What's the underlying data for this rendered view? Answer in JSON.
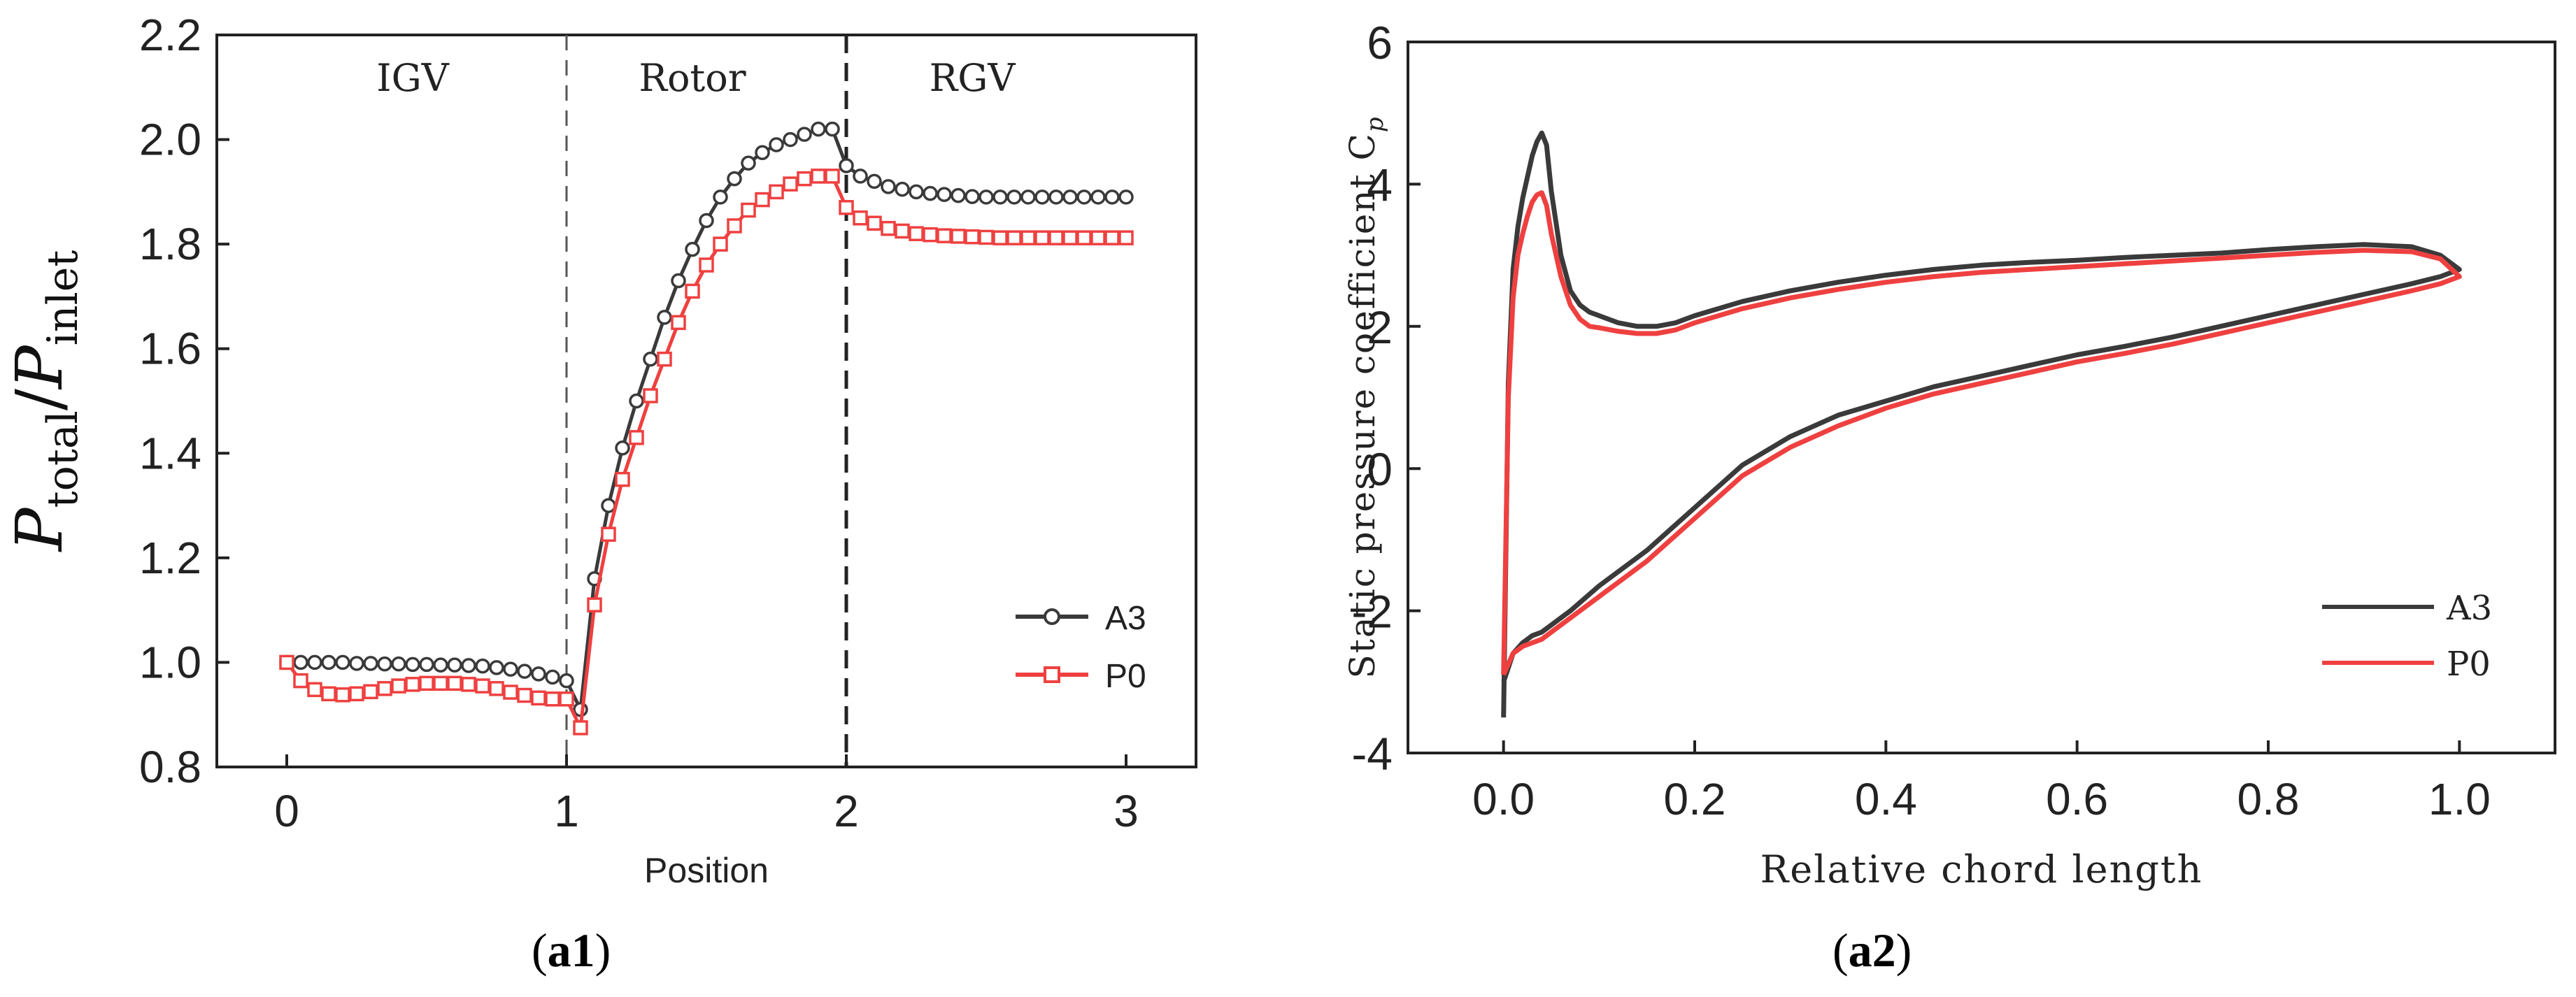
{
  "chart_data": [
    {
      "type": "line",
      "panel": "a1",
      "xlabel": "Position",
      "ylabel_main": "P",
      "ylabel_sub1": "total",
      "ylabel_slash": "/",
      "ylabel_main2": "P",
      "ylabel_sub2": "inlet",
      "xlim": [
        -0.25,
        3.25
      ],
      "ylim": [
        0.8,
        2.2
      ],
      "xticks": [
        0,
        1,
        2,
        3
      ],
      "xtick_labels": [
        "0",
        "1",
        "2",
        "3"
      ],
      "yticks": [
        0.8,
        1.0,
        1.2,
        1.4,
        1.6,
        1.8,
        2.0,
        2.2
      ],
      "ytick_labels": [
        "0.8",
        "1.0",
        "1.2",
        "1.4",
        "1.6",
        "1.8",
        "2.0",
        "2.2"
      ],
      "region_labels": [
        "IGV",
        "Rotor",
        "RGV"
      ],
      "dividers": [
        1,
        2
      ],
      "legend_position": "lower-right",
      "series": [
        {
          "name": "A3",
          "color": "#3a3a3a",
          "marker": "circle",
          "x": [
            0,
            0.05,
            0.1,
            0.15,
            0.2,
            0.25,
            0.3,
            0.35,
            0.4,
            0.45,
            0.5,
            0.55,
            0.6,
            0.65,
            0.7,
            0.75,
            0.8,
            0.85,
            0.9,
            0.95,
            1.0,
            1.05,
            1.1,
            1.15,
            1.2,
            1.25,
            1.3,
            1.35,
            1.4,
            1.45,
            1.5,
            1.55,
            1.6,
            1.65,
            1.7,
            1.75,
            1.8,
            1.85,
            1.9,
            1.95,
            2.0,
            2.05,
            2.1,
            2.15,
            2.2,
            2.25,
            2.3,
            2.35,
            2.4,
            2.45,
            2.5,
            2.55,
            2.6,
            2.65,
            2.7,
            2.75,
            2.8,
            2.85,
            2.9,
            2.95,
            3.0
          ],
          "y": [
            1.0,
            1.0,
            1.0,
            1.0,
            1.0,
            0.998,
            0.998,
            0.997,
            0.997,
            0.996,
            0.996,
            0.995,
            0.995,
            0.994,
            0.993,
            0.99,
            0.987,
            0.983,
            0.978,
            0.972,
            0.965,
            0.91,
            1.16,
            1.3,
            1.41,
            1.5,
            1.58,
            1.66,
            1.73,
            1.79,
            1.845,
            1.89,
            1.925,
            1.955,
            1.975,
            1.99,
            2.0,
            2.01,
            2.02,
            2.02,
            1.95,
            1.93,
            1.92,
            1.91,
            1.905,
            1.9,
            1.897,
            1.895,
            1.893,
            1.891,
            1.89,
            1.89,
            1.89,
            1.89,
            1.89,
            1.89,
            1.89,
            1.89,
            1.89,
            1.89,
            1.89
          ]
        },
        {
          "name": "P0",
          "color": "#ef4040",
          "marker": "square",
          "x": [
            0,
            0.05,
            0.1,
            0.15,
            0.2,
            0.25,
            0.3,
            0.35,
            0.4,
            0.45,
            0.5,
            0.55,
            0.6,
            0.65,
            0.7,
            0.75,
            0.8,
            0.85,
            0.9,
            0.95,
            1.0,
            1.05,
            1.1,
            1.15,
            1.2,
            1.25,
            1.3,
            1.35,
            1.4,
            1.45,
            1.5,
            1.55,
            1.6,
            1.65,
            1.7,
            1.75,
            1.8,
            1.85,
            1.9,
            1.95,
            2.0,
            2.05,
            2.1,
            2.15,
            2.2,
            2.25,
            2.3,
            2.35,
            2.4,
            2.45,
            2.5,
            2.55,
            2.6,
            2.65,
            2.7,
            2.75,
            2.8,
            2.85,
            2.9,
            2.95,
            3.0
          ],
          "y": [
            1.0,
            0.965,
            0.948,
            0.94,
            0.938,
            0.94,
            0.944,
            0.95,
            0.955,
            0.958,
            0.96,
            0.96,
            0.96,
            0.958,
            0.955,
            0.95,
            0.943,
            0.937,
            0.932,
            0.93,
            0.93,
            0.875,
            1.11,
            1.245,
            1.35,
            1.43,
            1.51,
            1.58,
            1.65,
            1.71,
            1.76,
            1.8,
            1.835,
            1.865,
            1.885,
            1.9,
            1.915,
            1.925,
            1.93,
            1.93,
            1.87,
            1.85,
            1.84,
            1.83,
            1.825,
            1.82,
            1.818,
            1.816,
            1.815,
            1.814,
            1.813,
            1.812,
            1.812,
            1.812,
            1.812,
            1.812,
            1.812,
            1.812,
            1.812,
            1.812,
            1.812
          ]
        }
      ]
    },
    {
      "type": "line",
      "panel": "a2",
      "xlabel": "Relative chord length",
      "ylabel_main": "Static pressure coefficient C",
      "ylabel_sub": "p",
      "xlim": [
        -0.1,
        1.1
      ],
      "ylim": [
        -4,
        6
      ],
      "xticks": [
        0.0,
        0.2,
        0.4,
        0.6,
        0.8,
        1.0
      ],
      "xtick_labels": [
        "0.0",
        "0.2",
        "0.4",
        "0.6",
        "0.8",
        "1.0"
      ],
      "yticks": [
        -4,
        -2,
        0,
        2,
        4,
        6
      ],
      "ytick_labels": [
        "-4",
        "-2",
        "0",
        "2",
        "4",
        "6"
      ],
      "legend_position": "lower-right",
      "series": [
        {
          "name": "A3",
          "color": "#3a3a3a",
          "x": [
            0.0,
            0.005,
            0.01,
            0.015,
            0.02,
            0.025,
            0.03,
            0.035,
            0.04,
            0.045,
            0.05,
            0.06,
            0.07,
            0.08,
            0.09,
            0.1,
            0.12,
            0.14,
            0.16,
            0.18,
            0.2,
            0.25,
            0.3,
            0.35,
            0.4,
            0.45,
            0.5,
            0.55,
            0.6,
            0.65,
            0.7,
            0.75,
            0.8,
            0.85,
            0.9,
            0.95,
            0.98,
            1.0,
            0.98,
            0.95,
            0.9,
            0.85,
            0.8,
            0.75,
            0.7,
            0.65,
            0.6,
            0.55,
            0.5,
            0.45,
            0.4,
            0.35,
            0.3,
            0.25,
            0.2,
            0.15,
            0.1,
            0.07,
            0.05,
            0.04,
            0.03,
            0.02,
            0.01,
            0.005,
            0.0
          ],
          "y": [
            -3.5,
            1.2,
            2.8,
            3.4,
            3.8,
            4.1,
            4.4,
            4.6,
            4.72,
            4.55,
            3.9,
            3.0,
            2.5,
            2.3,
            2.2,
            2.15,
            2.05,
            2.0,
            2.0,
            2.05,
            2.15,
            2.35,
            2.5,
            2.62,
            2.72,
            2.8,
            2.86,
            2.9,
            2.93,
            2.97,
            3.0,
            3.03,
            3.08,
            3.12,
            3.15,
            3.12,
            3.0,
            2.8,
            2.7,
            2.6,
            2.45,
            2.3,
            2.15,
            2.0,
            1.85,
            1.72,
            1.6,
            1.45,
            1.3,
            1.15,
            0.95,
            0.75,
            0.45,
            0.05,
            -0.55,
            -1.15,
            -1.65,
            -2.0,
            -2.2,
            -2.3,
            -2.35,
            -2.45,
            -2.6,
            -2.8,
            -3.0
          ]
        },
        {
          "name": "P0",
          "color": "#ef4040",
          "x": [
            0.0,
            0.005,
            0.01,
            0.015,
            0.02,
            0.025,
            0.03,
            0.035,
            0.04,
            0.045,
            0.05,
            0.06,
            0.07,
            0.08,
            0.09,
            0.1,
            0.12,
            0.14,
            0.16,
            0.18,
            0.2,
            0.25,
            0.3,
            0.35,
            0.4,
            0.45,
            0.5,
            0.55,
            0.6,
            0.65,
            0.7,
            0.75,
            0.8,
            0.85,
            0.9,
            0.95,
            0.98,
            1.0,
            0.98,
            0.95,
            0.9,
            0.85,
            0.8,
            0.75,
            0.7,
            0.65,
            0.6,
            0.55,
            0.5,
            0.45,
            0.4,
            0.35,
            0.3,
            0.25,
            0.2,
            0.15,
            0.1,
            0.07,
            0.05,
            0.04,
            0.03,
            0.02,
            0.01,
            0.005,
            0.0
          ],
          "y": [
            -2.9,
            1.0,
            2.4,
            3.0,
            3.3,
            3.55,
            3.75,
            3.85,
            3.88,
            3.7,
            3.3,
            2.7,
            2.3,
            2.1,
            2.0,
            1.98,
            1.93,
            1.9,
            1.9,
            1.95,
            2.05,
            2.25,
            2.4,
            2.52,
            2.62,
            2.7,
            2.76,
            2.8,
            2.84,
            2.88,
            2.92,
            2.96,
            3.0,
            3.04,
            3.07,
            3.05,
            2.95,
            2.7,
            2.6,
            2.5,
            2.35,
            2.2,
            2.05,
            1.9,
            1.75,
            1.62,
            1.5,
            1.35,
            1.2,
            1.05,
            0.85,
            0.6,
            0.3,
            -0.1,
            -0.7,
            -1.3,
            -1.8,
            -2.1,
            -2.3,
            -2.4,
            -2.45,
            -2.5,
            -2.6,
            -2.75,
            -2.9
          ]
        }
      ]
    }
  ],
  "captions": {
    "a1_open": "(",
    "a1_label": "a1",
    "a1_close": ")",
    "a2_open": "(",
    "a2_label": "a2",
    "a2_close": ")"
  }
}
